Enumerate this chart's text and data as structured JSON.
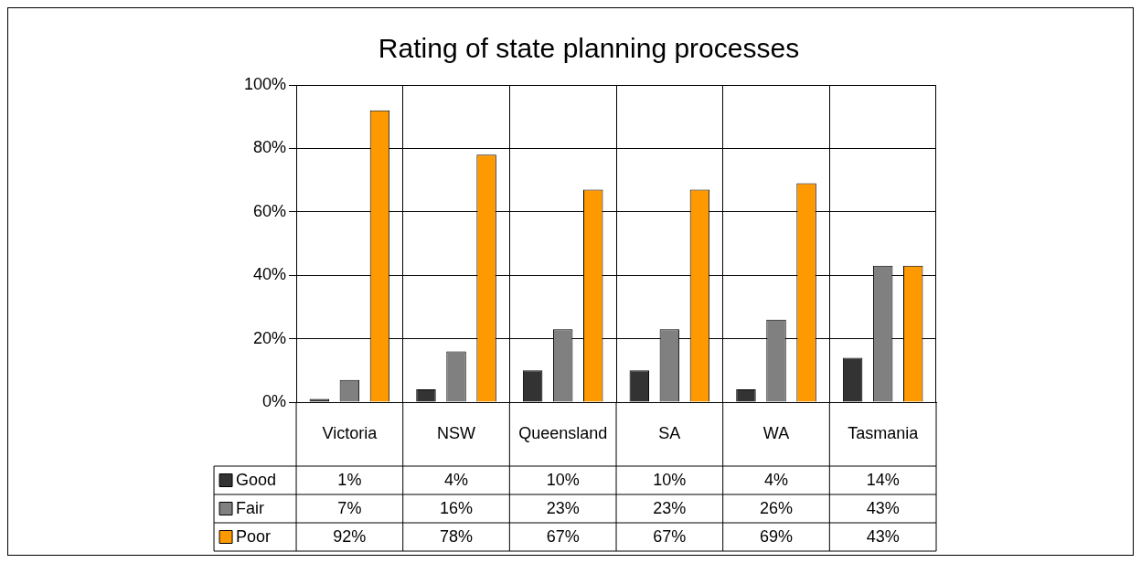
{
  "chart_data": {
    "type": "bar",
    "title": "Rating of state planning processes",
    "categories": [
      "Victoria",
      "NSW",
      "Queensland",
      "SA",
      "WA",
      "Tasmania"
    ],
    "series": [
      {
        "name": "Good",
        "color": "#333333",
        "values": [
          1,
          4,
          10,
          10,
          4,
          14
        ],
        "value_labels": [
          "1%",
          "4%",
          "10%",
          "10%",
          "4%",
          "14%"
        ]
      },
      {
        "name": "Fair",
        "color": "#808080",
        "values": [
          7,
          16,
          23,
          23,
          26,
          43
        ],
        "value_labels": [
          "7%",
          "16%",
          "23%",
          "23%",
          "26%",
          "43%"
        ]
      },
      {
        "name": "Poor",
        "color": "#ff9900",
        "values": [
          92,
          78,
          67,
          67,
          69,
          43
        ],
        "value_labels": [
          "92%",
          "78%",
          "67%",
          "67%",
          "69%",
          "43%"
        ]
      }
    ],
    "ylim": [
      0,
      100
    ],
    "yticks": [
      {
        "value": 0,
        "label": "0%"
      },
      {
        "value": 20,
        "label": "20%"
      },
      {
        "value": 40,
        "label": "40%"
      },
      {
        "value": 60,
        "label": "60%"
      },
      {
        "value": 80,
        "label": "80%"
      },
      {
        "value": 100,
        "label": "100%"
      }
    ],
    "grid": true,
    "legend": "bottom left"
  }
}
